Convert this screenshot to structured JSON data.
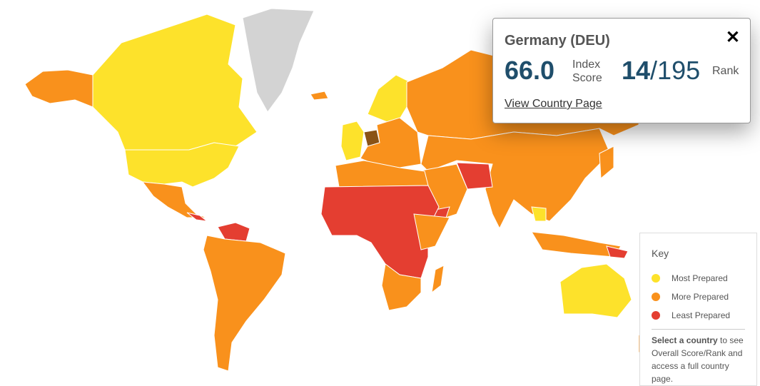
{
  "colors": {
    "most": "#fde22b",
    "more": "#f9911c",
    "least": "#e43e31",
    "nodata": "#d3d3d3",
    "selected": "#8a5316"
  },
  "tooltip": {
    "title": "Germany (DEU)",
    "score": "66.0",
    "score_label_1": "Index",
    "score_label_2": "Score",
    "rank": "14",
    "rank_total": "/195",
    "rank_label": "Rank",
    "link": "View Country Page",
    "close_icon": "close-icon"
  },
  "key": {
    "title": "Key",
    "items": [
      {
        "label": "Most Prepared",
        "level": "most"
      },
      {
        "label": "More Prepared",
        "level": "more"
      },
      {
        "label": "Least Prepared",
        "level": "least"
      }
    ],
    "note_bold": "Select a country",
    "note_rest": " to see Overall Score/Rank and access a full country page."
  }
}
